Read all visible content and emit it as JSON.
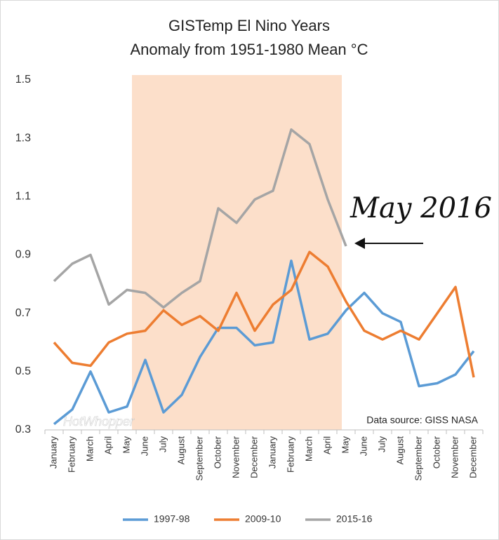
{
  "chart_data": {
    "type": "line",
    "title": "GISTemp El Nino Years",
    "subtitle": "Anomaly from 1951-1980 Mean °C",
    "categories": [
      "January",
      "February",
      "March",
      "April",
      "May",
      "June",
      "July",
      "August",
      "September",
      "October",
      "November",
      "December",
      "January",
      "February",
      "March",
      "April",
      "May",
      "June",
      "July",
      "August",
      "September",
      "October",
      "November",
      "December"
    ],
    "series": [
      {
        "name": "1997-98",
        "color": "#5b9bd5",
        "values": [
          0.32,
          0.37,
          0.5,
          0.36,
          0.38,
          0.54,
          0.36,
          0.42,
          0.55,
          0.65,
          0.65,
          0.59,
          0.6,
          0.88,
          0.61,
          0.63,
          0.71,
          0.77,
          0.7,
          0.67,
          0.45,
          0.46,
          0.49,
          0.57
        ]
      },
      {
        "name": "2009-10",
        "color": "#ed7d31",
        "values": [
          0.6,
          0.53,
          0.52,
          0.6,
          0.63,
          0.64,
          0.71,
          0.66,
          0.69,
          0.64,
          0.77,
          0.64,
          0.73,
          0.78,
          0.91,
          0.86,
          0.74,
          0.64,
          0.61,
          0.64,
          0.61,
          0.7,
          0.79,
          0.48
        ]
      },
      {
        "name": "2015-16",
        "color": "#a5a5a5",
        "values": [
          0.81,
          0.87,
          0.9,
          0.73,
          0.78,
          0.77,
          0.72,
          0.77,
          0.81,
          1.06,
          1.01,
          1.09,
          1.12,
          1.33,
          1.28,
          1.09,
          0.93,
          null,
          null,
          null,
          null,
          null,
          null,
          null
        ]
      }
    ],
    "ylim": [
      0.3,
      1.5
    ],
    "yticks": [
      0.3,
      0.5,
      0.7,
      0.9,
      1.1,
      1.3,
      1.5
    ],
    "grid": false,
    "legend": "bottom",
    "annotations": [
      "May 2016",
      "Data source: GISS NASA",
      "HotWhopper"
    ]
  }
}
